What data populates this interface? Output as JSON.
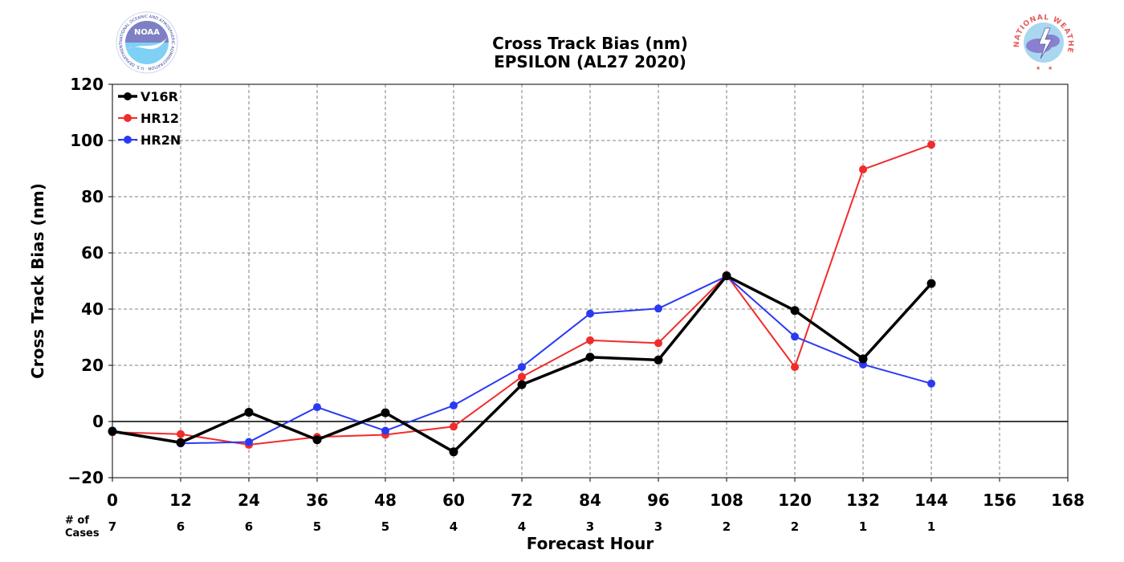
{
  "chart_data": {
    "type": "line",
    "title": "Cross Track Bias (nm)",
    "subtitle": "EPSILON (AL27 2020)",
    "xlabel": "Forecast Hour",
    "ylabel": "Cross Track Bias (nm)",
    "xlim": [
      0,
      168
    ],
    "ylim": [
      -20,
      120
    ],
    "xticks": [
      0,
      12,
      24,
      36,
      48,
      60,
      72,
      84,
      96,
      108,
      120,
      132,
      144,
      156,
      168
    ],
    "yticks": [
      -20,
      0,
      20,
      40,
      60,
      80,
      100,
      120
    ],
    "ytick_labels": [
      "−20",
      "0",
      "20",
      "40",
      "60",
      "80",
      "100",
      "120"
    ],
    "grid": true,
    "legend_position": "top-left",
    "cases_header": [
      "# of",
      "Cases"
    ],
    "cases": [
      7,
      6,
      6,
      5,
      5,
      4,
      4,
      3,
      3,
      2,
      2,
      1,
      1
    ],
    "x": [
      0,
      12,
      24,
      36,
      48,
      60,
      72,
      84,
      96,
      108,
      120,
      132,
      144
    ],
    "series": [
      {
        "name": "V16R",
        "color": "#000000",
        "values": [
          -3.5,
          -7.5,
          3.3,
          -6.5,
          3.1,
          -10.8,
          13.1,
          22.9,
          21.9,
          51.8,
          39.5,
          22.3,
          49.1
        ]
      },
      {
        "name": "HR12",
        "color": "#f22b2b",
        "values": [
          -3.8,
          -4.5,
          -8.3,
          -5.5,
          -4.7,
          -1.8,
          15.9,
          28.9,
          27.9,
          52.1,
          19.4,
          89.7,
          98.5
        ]
      },
      {
        "name": "HR2N",
        "color": "#2b3af2",
        "values": [
          -3.2,
          -7.8,
          -7.3,
          5.1,
          -3.3,
          5.7,
          19.4,
          38.4,
          40.2,
          51.7,
          30.2,
          20.3,
          13.5
        ]
      }
    ]
  },
  "logos": {
    "noaa": "NOAA",
    "noaa_ring_text": "NATIONAL OCEANIC AND ATMOSPHERIC ADMINISTRATION · U.S. DEPARTMENT OF COMMERCE",
    "nws_ring_text": "NATIONAL WEATHER SERVICE"
  }
}
